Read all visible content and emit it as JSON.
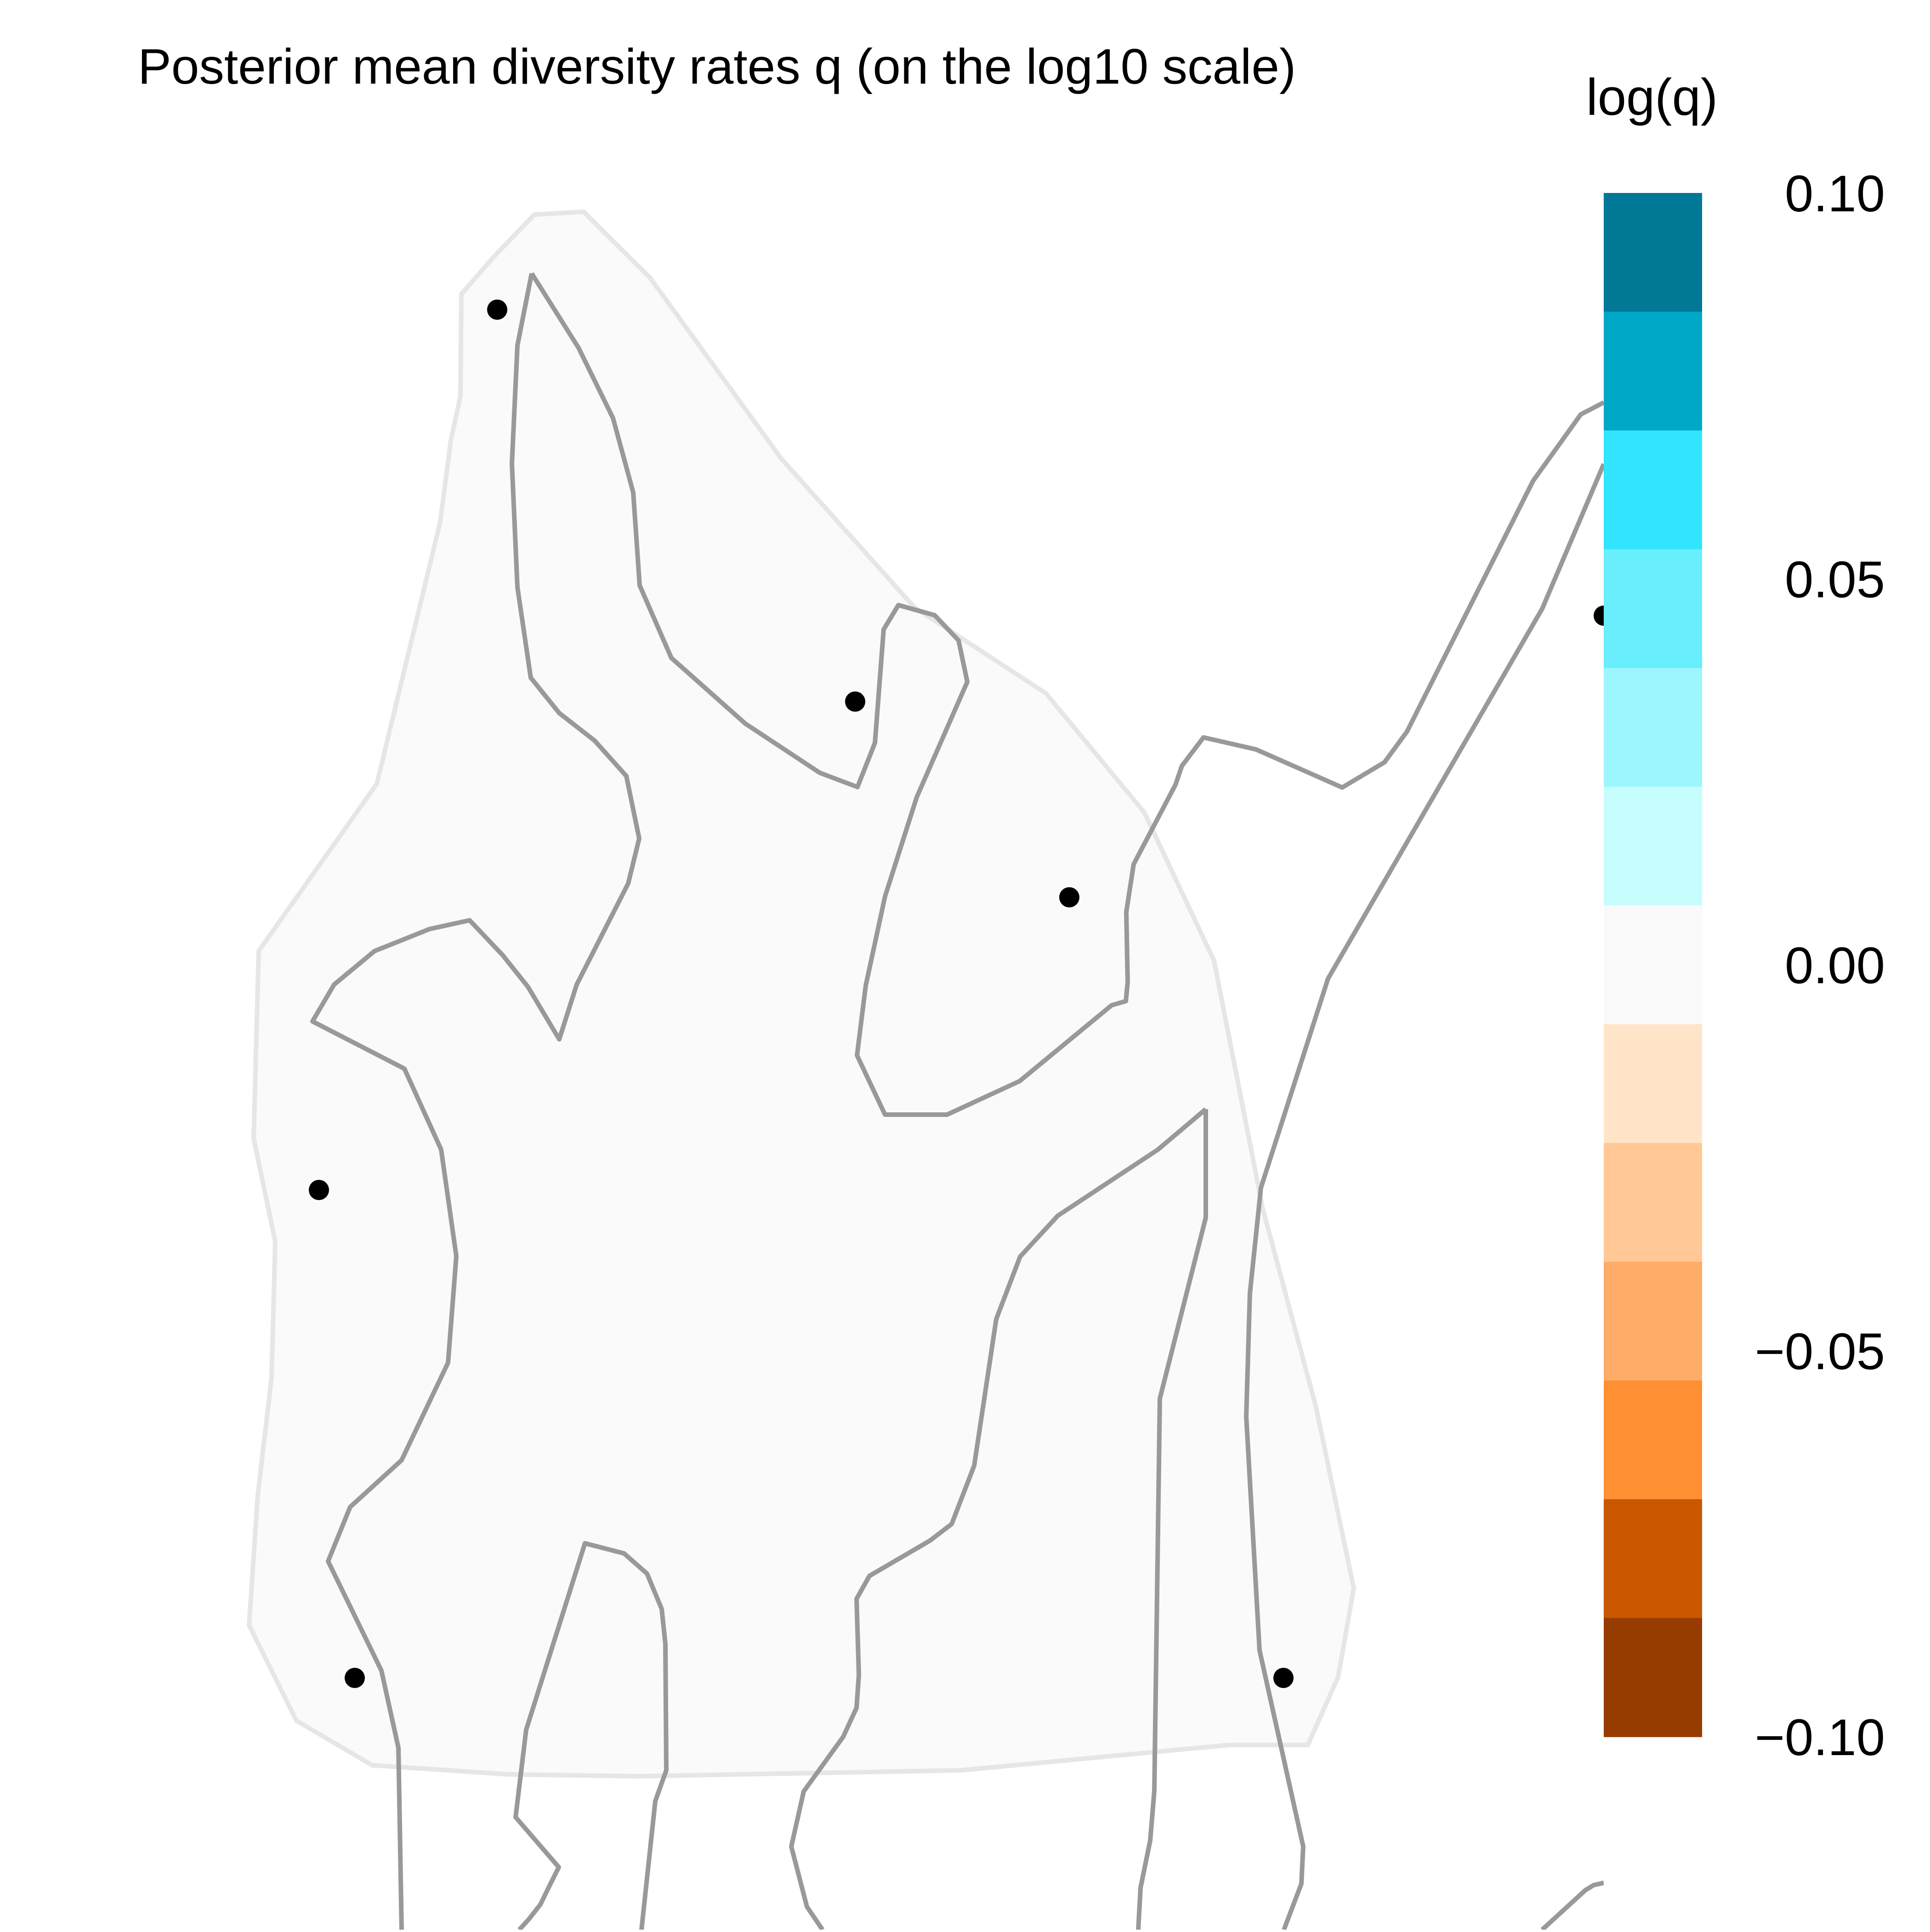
{
  "map": {
    "title": "Posterior mean diversity rates q (on the log10 scale)",
    "habitat_fill_color": "#fafafa",
    "habitat_outline_color": "#e6e6e6",
    "border_color": "#999999",
    "site_marker_color": "#000000",
    "site_count": 7
  },
  "legend": {
    "title": "log(q)",
    "range": [
      -0.1,
      0.1
    ],
    "ticks": [
      "0.10",
      "0.05",
      "0.00",
      "−0.05",
      "−0.10"
    ],
    "colors_top_to_bottom": [
      "#007896",
      "#00a8c8",
      "#32e4ff",
      "#68eefc",
      "#9cf6fe",
      "#c8fdfe",
      "#fafafa",
      "#ffe4c8",
      "#ffc896",
      "#feac68",
      "#fe8f32",
      "#c85700",
      "#963c00"
    ]
  }
}
